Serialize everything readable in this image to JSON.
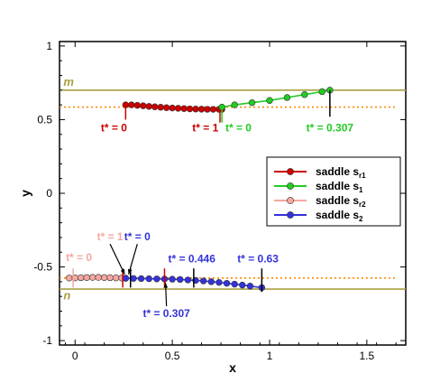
{
  "chart_data": {
    "type": "line",
    "xlabel": "x",
    "ylabel": "y",
    "xlim": [
      -0.08,
      1.7
    ],
    "ylim": [
      -1.03,
      1.03
    ],
    "xticks": [
      {
        "v": 0,
        "label": "0"
      },
      {
        "v": 0.5,
        "label": "0.5"
      },
      {
        "v": 1,
        "label": "1"
      },
      {
        "v": 1.5,
        "label": "1.5"
      }
    ],
    "yticks": [
      {
        "v": -1,
        "label": "-1"
      },
      {
        "v": -0.5,
        "label": "-0.5"
      },
      {
        "v": 0,
        "label": "0"
      },
      {
        "v": 0.5,
        "label": "0.5"
      },
      {
        "v": 1,
        "label": "1"
      }
    ],
    "colors": {
      "s_r1": "#cc0000",
      "s_1": "#22cc22",
      "s_r2": "#f5a7a0",
      "s_2": "#3333dd",
      "hlines": "#a8a040",
      "dotted": "#ff8800",
      "black": "#000000"
    },
    "hlines": [
      {
        "name": "m",
        "y": 0.7
      },
      {
        "name": "n",
        "y": -0.65
      }
    ],
    "dotted_lines": [
      0.585,
      -0.575
    ],
    "series": [
      {
        "key": "s_r1",
        "name": "saddle s",
        "sub": "r1",
        "color": "#cc0000",
        "x": [
          0.26,
          0.29,
          0.32,
          0.35,
          0.38,
          0.41,
          0.44,
          0.47,
          0.5,
          0.53,
          0.56,
          0.59,
          0.62,
          0.65,
          0.68,
          0.71,
          0.74,
          0.755
        ],
        "y": [
          0.6,
          0.6,
          0.597,
          0.594,
          0.59,
          0.587,
          0.584,
          0.581,
          0.579,
          0.577,
          0.575,
          0.573,
          0.572,
          0.571,
          0.57,
          0.57,
          0.57,
          0.57
        ]
      },
      {
        "key": "s_1",
        "name": "saddle s",
        "sub": "1",
        "color": "#22cc22",
        "x": [
          0.755,
          0.82,
          0.91,
          1.0,
          1.09,
          1.18,
          1.27,
          1.31
        ],
        "y": [
          0.585,
          0.6,
          0.615,
          0.63,
          0.65,
          0.67,
          0.69,
          0.7
        ]
      },
      {
        "key": "s_r2",
        "name": "saddle s",
        "sub": "r2",
        "color": "#f5a7a0",
        "x": [
          -0.03,
          0.0,
          0.03,
          0.06,
          0.09,
          0.12,
          0.15,
          0.18,
          0.21,
          0.24,
          0.26
        ],
        "y": [
          -0.575,
          -0.574,
          -0.573,
          -0.572,
          -0.571,
          -0.571,
          -0.572,
          -0.573,
          -0.574,
          -0.575,
          -0.576
        ]
      },
      {
        "key": "s_2",
        "name": "saddle s",
        "sub": "2",
        "color": "#3333dd",
        "x": [
          0.26,
          0.3,
          0.34,
          0.38,
          0.42,
          0.46,
          0.5,
          0.54,
          0.58,
          0.62,
          0.66,
          0.7,
          0.74,
          0.78,
          0.82,
          0.86,
          0.9,
          0.96
        ],
        "y": [
          -0.577,
          -0.578,
          -0.579,
          -0.58,
          -0.581,
          -0.582,
          -0.583,
          -0.585,
          -0.588,
          -0.591,
          -0.595,
          -0.6,
          -0.605,
          -0.611,
          -0.617,
          -0.623,
          -0.63,
          -0.64
        ]
      }
    ],
    "hline_labels": [
      {
        "text": "m",
        "x": -0.06,
        "y": 0.73
      },
      {
        "text": "n",
        "x": -0.06,
        "y": -0.72
      }
    ],
    "annotations": [
      {
        "text": "t* = 0",
        "color": "#cc0000",
        "tx": 0.2,
        "ty": 0.42,
        "px": 0.26,
        "py": 0.6,
        "style": "tick",
        "tick_y1": 0.6,
        "tick_y2": 0.5
      },
      {
        "text": "t* = 1",
        "color": "#cc0000",
        "tx": 0.67,
        "ty": 0.42,
        "px": 0.745,
        "py": 0.57,
        "style": "tick",
        "tick_y1": 0.57,
        "tick_y2": 0.48
      },
      {
        "text": "t* = 0",
        "color": "#22cc22",
        "tx": 0.84,
        "ty": 0.42,
        "px": 0.755,
        "py": 0.585,
        "style": "tick",
        "tick_y1": 0.585,
        "tick_y2": 0.48
      },
      {
        "text": "t* = 0.307",
        "color": "#22cc22",
        "tx": 1.31,
        "ty": 0.42,
        "px": 1.31,
        "py": 0.7,
        "style": "tick",
        "tick_y1": 0.7,
        "tick_y2": 0.52
      },
      {
        "text": "t* = 0",
        "color": "#f5a7a0",
        "tx": 0.02,
        "ty": -0.46,
        "px": -0.01,
        "py": -0.575,
        "style": "tick",
        "tick_y1": -0.51,
        "tick_y2": -0.64
      },
      {
        "text": "t* = 1",
        "color": "#f5a7a0",
        "tx": 0.18,
        "ty": -0.32,
        "px": 0.255,
        "py": -0.575,
        "style": "arrow"
      },
      {
        "text": "t* = 0",
        "color": "#3333dd",
        "tx": 0.32,
        "ty": -0.32,
        "px": 0.275,
        "py": -0.575,
        "style": "arrow"
      },
      {
        "text": "t* = 0.446",
        "color": "#3333dd",
        "tx": 0.6,
        "ty": -0.47,
        "px": 0.61,
        "py": -0.59,
        "style": "tick",
        "tick_y1": -0.51,
        "tick_y2": -0.64
      },
      {
        "text": "t* = 0.63",
        "color": "#3333dd",
        "tx": 0.94,
        "ty": -0.47,
        "px": 0.96,
        "py": -0.64,
        "style": "tick",
        "tick_y1": -0.51,
        "tick_y2": -0.67
      },
      {
        "text": "t* = 0.307",
        "color": "#3333dd",
        "tx": 0.47,
        "ty": -0.84,
        "px": 0.465,
        "py": -0.583,
        "style": "arrow-up"
      }
    ],
    "extra_ticks": [
      {
        "x": 0.245,
        "y1": -0.51,
        "y2": -0.64,
        "color": "#cc0000"
      },
      {
        "x": 0.285,
        "y1": -0.51,
        "y2": -0.64,
        "color": "#000000"
      },
      {
        "x": 0.46,
        "y1": -0.51,
        "y2": -0.64,
        "color": "#cc0000"
      }
    ],
    "legend": {
      "position": "right",
      "entries": [
        {
          "label": "saddle s",
          "sub": "r1",
          "color": "#cc0000"
        },
        {
          "label": "saddle s",
          "sub": "1",
          "color": "#22cc22"
        },
        {
          "label": "saddle s",
          "sub": "r2",
          "color": "#f5a7a0"
        },
        {
          "label": "saddle s",
          "sub": "2",
          "color": "#3333dd"
        }
      ]
    },
    "grid": false
  }
}
